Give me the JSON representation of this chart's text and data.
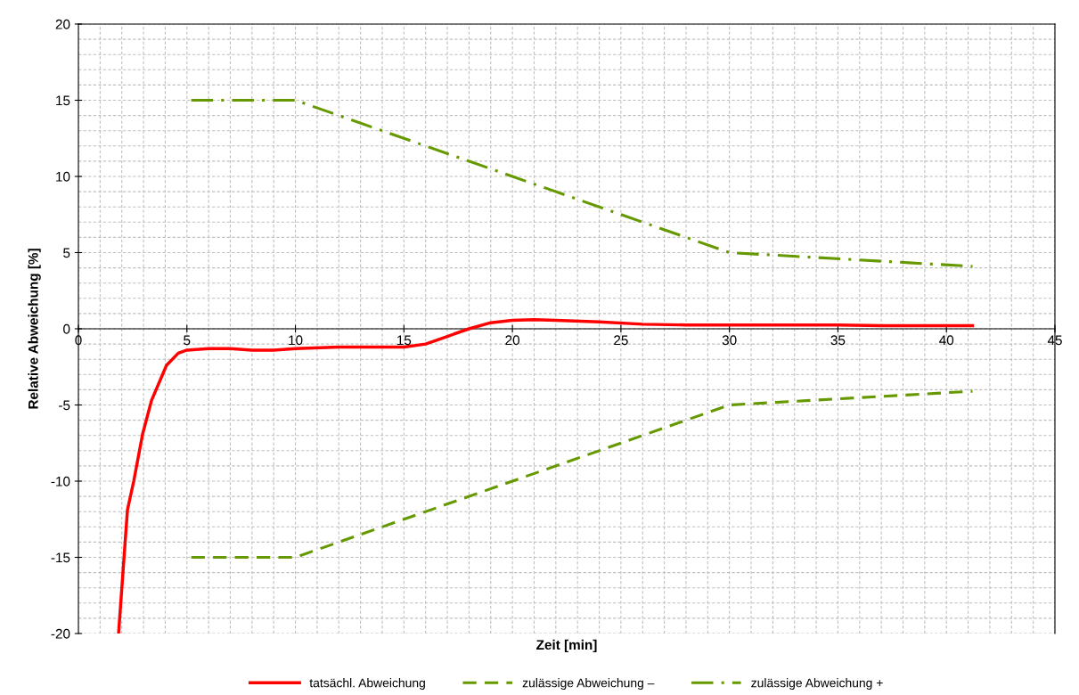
{
  "chart_data": {
    "type": "line",
    "xlabel": "Zeit [min]",
    "ylabel": "Relative Abweichung [%]",
    "xlim": [
      0,
      45
    ],
    "ylim": [
      -20,
      20
    ],
    "xticks": [
      0,
      5,
      10,
      15,
      20,
      25,
      30,
      35,
      40,
      45
    ],
    "yticks": [
      -20,
      -15,
      -10,
      -5,
      0,
      5,
      10,
      15,
      20
    ],
    "grid": true,
    "legend": "bottom",
    "marker": "none",
    "series": [
      {
        "name": "tatsächl. Abweichung",
        "color": "#ff0000",
        "line_style": "solid",
        "x": [
          1.85,
          2.26,
          2.55,
          2.96,
          3.37,
          4.06,
          4.6,
          5.0,
          6,
          7,
          8,
          9,
          10,
          12,
          13,
          15,
          16,
          17,
          18,
          19,
          20,
          21,
          22,
          24,
          26,
          28,
          30,
          35,
          37,
          41.2
        ],
        "values": [
          -20,
          -11.9,
          -10,
          -6.9,
          -4.7,
          -2.4,
          -1.6,
          -1.4,
          -1.3,
          -1.3,
          -1.4,
          -1.4,
          -1.3,
          -1.2,
          -1.2,
          -1.2,
          -1.0,
          -0.5,
          0.0,
          0.4,
          0.55,
          0.6,
          0.55,
          0.45,
          0.3,
          0.25,
          0.25,
          0.25,
          0.2,
          0.2
        ]
      },
      {
        "name": "zulässige Abweichung –",
        "color": "#669900",
        "line_style": "dashed",
        "x": [
          5.2,
          10,
          30,
          41.2
        ],
        "values": [
          -15,
          -15,
          -5,
          -4.1
        ]
      },
      {
        "name": "zulässige Abweichung +",
        "color": "#669900",
        "line_style": "dashdot",
        "x": [
          5.2,
          10,
          30,
          41.2
        ],
        "values": [
          15,
          15,
          5,
          4.1
        ]
      }
    ]
  }
}
